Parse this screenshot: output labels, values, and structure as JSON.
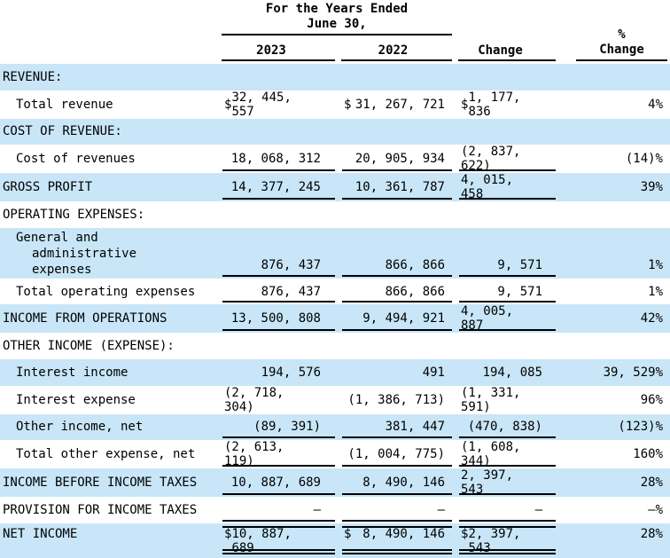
{
  "colors": {
    "band_blue": "#c8e6f8",
    "text": "#000000",
    "rule": "#000000"
  },
  "header": {
    "group_line1": "For the  Years Ended",
    "group_line2": "June  30,",
    "col1": "2023",
    "col2": "2022",
    "col3": "Change",
    "col4_line1": "%",
    "col4_line2": "Change"
  },
  "rows": [
    {
      "id": "revenue-section",
      "lines": [
        {
          "text": "REVENUE:",
          "indent": 0
        }
      ],
      "band": true,
      "dollar": false,
      "v1": "",
      "v2": "",
      "v3": "",
      "pct": "",
      "underline": "none"
    },
    {
      "id": "total-revenue",
      "lines": [
        {
          "text": "Total revenue",
          "indent": 1
        }
      ],
      "band": false,
      "dollar": true,
      "v1": "32, 445, 557",
      "v2": "31, 267, 721",
      "v3": "1, 177, 836",
      "pct": "4%",
      "underline": "none"
    },
    {
      "id": "cost-of-revenue-section",
      "lines": [
        {
          "text": "COST OF REVENUE:",
          "indent": 0
        }
      ],
      "band": true,
      "dollar": false,
      "v1": "",
      "v2": "",
      "v3": "",
      "pct": "",
      "underline": "none"
    },
    {
      "id": "cost-of-revenues",
      "lines": [
        {
          "text": "Cost of revenues",
          "indent": 1
        }
      ],
      "band": false,
      "dollar": false,
      "v1": "18, 068, 312",
      "v2": "20, 905, 934",
      "v3": "(2, 837, 622)",
      "pct": "(14)%",
      "underline": "single"
    },
    {
      "id": "gross-profit",
      "lines": [
        {
          "text": "GROSS PROFIT",
          "indent": 0
        }
      ],
      "band": true,
      "dollar": false,
      "v1": "14, 377, 245",
      "v2": "10, 361, 787",
      "v3": "4, 015, 458",
      "pct": "39%",
      "underline": "single"
    },
    {
      "id": "operating-expenses-section",
      "lines": [
        {
          "text": "OPERATING EXPENSES:",
          "indent": 0
        }
      ],
      "band": false,
      "dollar": false,
      "v1": "",
      "v2": "",
      "v3": "",
      "pct": "",
      "underline": "none"
    },
    {
      "id": "general-administrative-expenses",
      "tall": true,
      "lines": [
        {
          "text": "General and",
          "indent": 1
        },
        {
          "text": "administrative",
          "indent": 2
        },
        {
          "text": "expenses",
          "indent": 2
        }
      ],
      "band": true,
      "dollar": false,
      "v1": "876, 437",
      "v2": "866, 866",
      "v3": "9, 571",
      "pct": "1%",
      "underline": "single"
    },
    {
      "id": "total-operating-expenses",
      "lines": [
        {
          "text": "Total operating expenses",
          "indent": 1
        }
      ],
      "band": false,
      "dollar": false,
      "v1": "876, 437",
      "v2": "866, 866",
      "v3": "9, 571",
      "pct": "1%",
      "underline": "single"
    },
    {
      "id": "income-from-operations",
      "lines": [
        {
          "text": "INCOME FROM OPERATIONS",
          "indent": 0
        }
      ],
      "band": true,
      "dollar": false,
      "v1": "13, 500, 808",
      "v2": "9, 494, 921",
      "v3": "4, 005, 887",
      "pct": "42%",
      "underline": "single"
    },
    {
      "id": "other-income-expense-section",
      "lines": [
        {
          "text": "OTHER INCOME (EXPENSE):",
          "indent": 0
        }
      ],
      "band": false,
      "dollar": false,
      "v1": "",
      "v2": "",
      "v3": "",
      "pct": "",
      "underline": "none"
    },
    {
      "id": "interest-income",
      "lines": [
        {
          "text": "Interest income",
          "indent": 1
        }
      ],
      "band": true,
      "dollar": false,
      "v1": "194, 576",
      "v2": "491",
      "v3": "194, 085",
      "pct": "39, 529%",
      "underline": "none"
    },
    {
      "id": "interest-expense",
      "lines": [
        {
          "text": "Interest expense",
          "indent": 1
        }
      ],
      "band": false,
      "dollar": false,
      "v1": "(2, 718, 304)",
      "v2": "(1, 386, 713)",
      "v3": "(1, 331, 591)",
      "pct": "96%",
      "underline": "none"
    },
    {
      "id": "other-income-net",
      "lines": [
        {
          "text": "Other income, net",
          "indent": 1
        }
      ],
      "band": true,
      "dollar": false,
      "v1": "(89, 391)",
      "v2": "381, 447",
      "v3": "(470, 838)",
      "pct": "(123)%",
      "underline": "single"
    },
    {
      "id": "total-other-expense-net",
      "lines": [
        {
          "text": "Total other expense, net",
          "indent": 1
        }
      ],
      "band": false,
      "dollar": false,
      "v1": "(2, 613, 119)",
      "v2": "(1, 004, 775)",
      "v3": "(1, 608, 344)",
      "pct": "160%",
      "underline": "single"
    },
    {
      "id": "income-before-income-taxes",
      "lines": [
        {
          "text": "INCOME BEFORE INCOME TAXES",
          "indent": 0
        }
      ],
      "band": true,
      "dollar": false,
      "v1": "10, 887, 689",
      "v2": "8, 490, 146",
      "v3": "2, 397, 543",
      "pct": "28%",
      "underline": "single"
    },
    {
      "id": "provision-for-income-taxes",
      "lines": [
        {
          "text": "PROVISION FOR INCOME TAXES",
          "indent": 0
        }
      ],
      "band": false,
      "dollar": false,
      "v1": "—",
      "v2": "—",
      "v3": "—",
      "pct": "—%",
      "underline": "single"
    },
    {
      "id": "net-income",
      "net": true,
      "topline": true,
      "lines": [
        {
          "text": "NET INCOME",
          "indent": 0
        }
      ],
      "band": true,
      "dollar": true,
      "v1": "10, 887, 689",
      "v2": "8, 490, 146",
      "v3": "2, 397, 543",
      "pct": "28%",
      "underline": "double"
    }
  ]
}
